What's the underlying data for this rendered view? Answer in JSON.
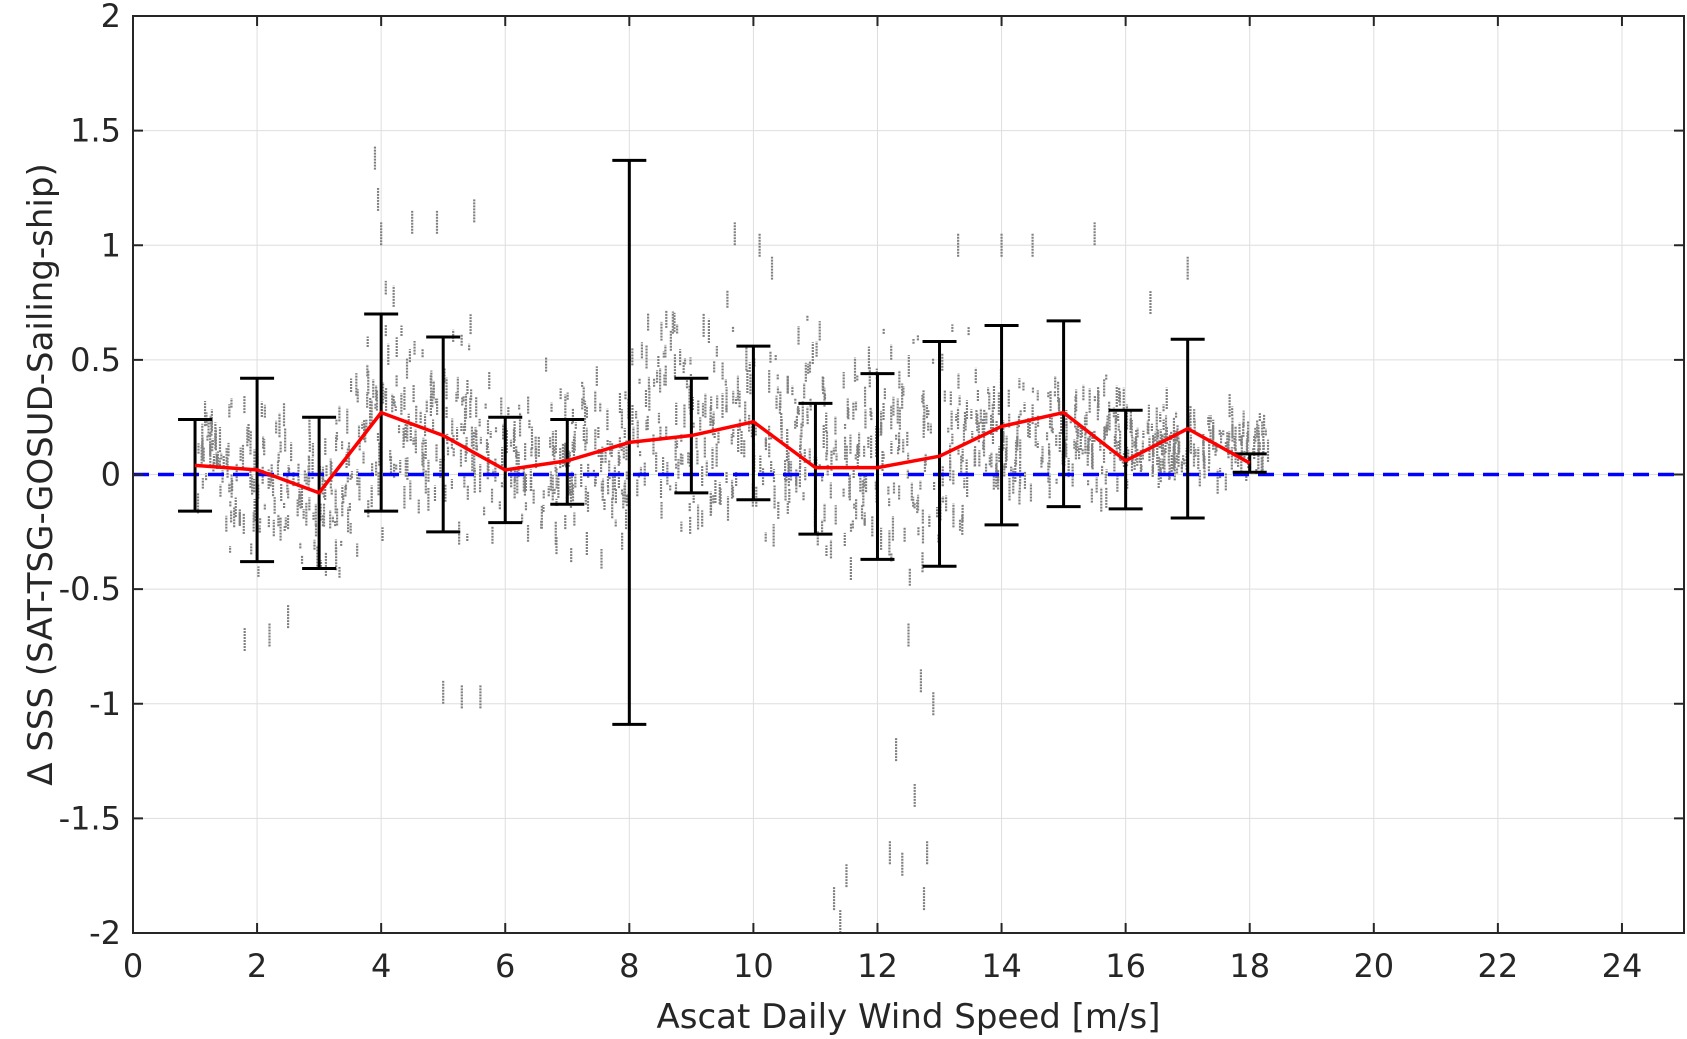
{
  "chart_data": {
    "type": "scatter",
    "title": "",
    "xlabel": "Ascat Daily Wind Speed [m/s]",
    "ylabel": "Δ SSS (SAT-TSG-GOSUD-Sailing-ship)",
    "xlim": [
      0,
      25
    ],
    "ylim": [
      -2,
      2
    ],
    "xticks": [
      0,
      2,
      4,
      6,
      8,
      10,
      12,
      14,
      16,
      18,
      20,
      22,
      24
    ],
    "xtick_labels": [
      "0",
      "2",
      "4",
      "6",
      "8",
      "10",
      "12",
      "14",
      "16",
      "18",
      "20",
      "22",
      "24"
    ],
    "yticks": [
      2,
      1.5,
      1,
      0.5,
      0,
      -0.5,
      -1,
      -1.5,
      -2
    ],
    "ytick_labels": [
      "2",
      "1.5",
      "1",
      "0.5",
      "0",
      "-0.5",
      "-1",
      "-1.5",
      "-2"
    ],
    "grid": true,
    "colors": {
      "points": "#808080",
      "mean_line": "#ff0000",
      "errorbars": "#000000",
      "zero_line": "#0000ff",
      "grid": "#dedede",
      "axis": "#262626"
    },
    "series": [
      {
        "type": "line",
        "style": "red solid",
        "x": [
          1,
          2,
          3,
          4,
          5,
          6,
          7,
          8,
          9,
          10,
          11,
          12,
          13,
          14,
          15,
          16,
          17,
          18
        ],
        "y": [
          0.04,
          0.02,
          -0.08,
          0.27,
          0.17,
          0.02,
          0.06,
          0.14,
          0.17,
          0.23,
          0.03,
          0.03,
          0.08,
          0.21,
          0.27,
          0.06,
          0.2,
          0.05
        ]
      },
      {
        "type": "errorbar",
        "style": "black",
        "x": [
          1,
          2,
          3,
          4,
          5,
          6,
          7,
          8,
          9,
          10,
          11,
          12,
          13,
          14,
          15,
          16,
          17,
          18
        ],
        "lower": [
          -0.16,
          -0.38,
          -0.41,
          -0.16,
          -0.25,
          -0.21,
          -0.13,
          -1.09,
          -0.08,
          -0.11,
          -0.26,
          -0.37,
          -0.4,
          -0.22,
          -0.14,
          -0.15,
          -0.19,
          0.01
        ],
        "upper": [
          0.24,
          0.42,
          0.25,
          0.7,
          0.6,
          0.25,
          0.24,
          1.37,
          0.42,
          0.56,
          0.31,
          0.44,
          0.58,
          0.65,
          0.67,
          0.28,
          0.59,
          0.09
        ]
      },
      {
        "type": "reference",
        "style": "blue dashed",
        "y": 0
      },
      {
        "type": "scatter-density",
        "style": "gray points",
        "note": "dense cloud of individual differences",
        "clusters": [
          {
            "x_range": [
              1,
              1.5
            ],
            "y_range": [
              -0.2,
              0.4
            ]
          },
          {
            "x_range": [
              1.5,
              3.5
            ],
            "y_range": [
              -0.55,
              0.45
            ]
          },
          {
            "x_range": [
              3.5,
              5.5
            ],
            "y_range": [
              -0.45,
              0.9
            ]
          },
          {
            "x_range": [
              5.5,
              8
            ],
            "y_range": [
              -0.45,
              0.55
            ]
          },
          {
            "x_range": [
              8,
              11
            ],
            "y_range": [
              -0.45,
              0.85
            ]
          },
          {
            "x_range": [
              11,
              13.5
            ],
            "y_range": [
              -0.55,
              0.75
            ]
          },
          {
            "x_range": [
              13.5,
              16
            ],
            "y_range": [
              -0.25,
              0.6
            ]
          },
          {
            "x_range": [
              16,
              18.3
            ],
            "y_range": [
              -0.1,
              0.35
            ]
          }
        ],
        "outliers": [
          {
            "x": 3.9,
            "y": 1.38
          },
          {
            "x": 3.95,
            "y": 1.2
          },
          {
            "x": 4.0,
            "y": 1.05
          },
          {
            "x": 4.5,
            "y": 1.1
          },
          {
            "x": 4.9,
            "y": 1.1
          },
          {
            "x": 5.5,
            "y": 1.15
          },
          {
            "x": 1.8,
            "y": -0.72
          },
          {
            "x": 2.2,
            "y": -0.7
          },
          {
            "x": 2.5,
            "y": -0.62
          },
          {
            "x": 5.0,
            "y": -0.95
          },
          {
            "x": 5.3,
            "y": -0.97
          },
          {
            "x": 5.6,
            "y": -0.97
          },
          {
            "x": 9.7,
            "y": 1.05
          },
          {
            "x": 10.1,
            "y": 1.0
          },
          {
            "x": 10.3,
            "y": 0.9
          },
          {
            "x": 12.5,
            "y": -0.7
          },
          {
            "x": 12.7,
            "y": -0.9
          },
          {
            "x": 12.9,
            "y": -1.0
          },
          {
            "x": 12.3,
            "y": -1.2
          },
          {
            "x": 12.6,
            "y": -1.4
          },
          {
            "x": 12.8,
            "y": -1.65
          },
          {
            "x": 11.3,
            "y": -1.85
          },
          {
            "x": 11.5,
            "y": -1.75
          },
          {
            "x": 12.2,
            "y": -1.65
          },
          {
            "x": 12.4,
            "y": -1.7
          },
          {
            "x": 12.75,
            "y": -1.85
          },
          {
            "x": 11.4,
            "y": -1.95
          },
          {
            "x": 14.0,
            "y": 1.0
          },
          {
            "x": 14.5,
            "y": 1.0
          },
          {
            "x": 15.5,
            "y": 1.05
          },
          {
            "x": 13.3,
            "y": 1.0
          },
          {
            "x": 17.0,
            "y": 0.9
          },
          {
            "x": 16.4,
            "y": 0.75
          }
        ]
      }
    ]
  }
}
